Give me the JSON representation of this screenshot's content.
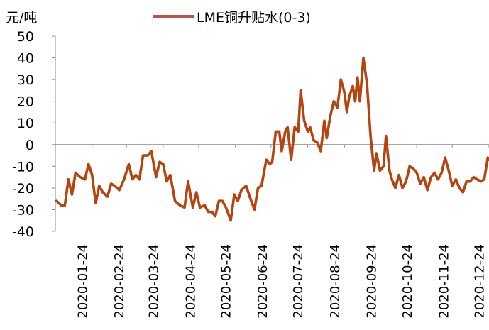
{
  "chart_data": {
    "type": "line",
    "title": "",
    "ylabel": "元/吨",
    "xlabel": "",
    "ylim": [
      -40,
      50
    ],
    "yticks": [
      50,
      40,
      30,
      20,
      10,
      0,
      -10,
      -20,
      -30,
      -40
    ],
    "xticks": [
      "2020-01-24",
      "2020-02-24",
      "2020-03-24",
      "2020-04-24",
      "2020-05-24",
      "2020-06-24",
      "2020-07-24",
      "2020-08-24",
      "2020-09-24",
      "2020-10-24",
      "2020-11-24",
      "2020-12-24"
    ],
    "grid": false,
    "legend_position": "top",
    "series": [
      {
        "name": "LME铜升贴水(0-3)",
        "color": "#b5440e",
        "points": [
          [
            "2020-01-02",
            -26
          ],
          [
            "2020-01-06",
            -28
          ],
          [
            "2020-01-09",
            -28
          ],
          [
            "2020-01-12",
            -16
          ],
          [
            "2020-01-15",
            -23
          ],
          [
            "2020-01-18",
            -13
          ],
          [
            "2020-01-22",
            -15
          ],
          [
            "2020-01-26",
            -16
          ],
          [
            "2020-01-29",
            -9
          ],
          [
            "2020-02-01",
            -14
          ],
          [
            "2020-02-04",
            -27
          ],
          [
            "2020-02-07",
            -19
          ],
          [
            "2020-02-10",
            -22
          ],
          [
            "2020-02-14",
            -24
          ],
          [
            "2020-02-17",
            -18
          ],
          [
            "2020-02-20",
            -19
          ],
          [
            "2020-02-24",
            -21
          ],
          [
            "2020-02-28",
            -16
          ],
          [
            "2020-03-03",
            -9
          ],
          [
            "2020-03-06",
            -16
          ],
          [
            "2020-03-09",
            -14
          ],
          [
            "2020-03-12",
            -16
          ],
          [
            "2020-03-15",
            -5
          ],
          [
            "2020-03-19",
            -5
          ],
          [
            "2020-03-22",
            -3
          ],
          [
            "2020-03-26",
            -15
          ],
          [
            "2020-03-29",
            -8
          ],
          [
            "2020-04-01",
            -9
          ],
          [
            "2020-04-04",
            -17
          ],
          [
            "2020-04-07",
            -14
          ],
          [
            "2020-04-11",
            -26
          ],
          [
            "2020-04-15",
            -28
          ],
          [
            "2020-04-19",
            -29
          ],
          [
            "2020-04-22",
            -17
          ],
          [
            "2020-04-26",
            -29
          ],
          [
            "2020-04-29",
            -22
          ],
          [
            "2020-05-02",
            -29
          ],
          [
            "2020-05-06",
            -28
          ],
          [
            "2020-05-09",
            -31
          ],
          [
            "2020-05-12",
            -31
          ],
          [
            "2020-05-15",
            -33
          ],
          [
            "2020-05-18",
            -26
          ],
          [
            "2020-05-21",
            -26
          ],
          [
            "2020-05-24",
            -29
          ],
          [
            "2020-05-28",
            -35
          ],
          [
            "2020-05-31",
            -23
          ],
          [
            "2020-06-03",
            -26
          ],
          [
            "2020-06-06",
            -21
          ],
          [
            "2020-06-10",
            -19
          ],
          [
            "2020-06-13",
            -24
          ],
          [
            "2020-06-17",
            -30
          ],
          [
            "2020-06-20",
            -20
          ],
          [
            "2020-06-23",
            -19
          ],
          [
            "2020-06-27",
            -7
          ],
          [
            "2020-06-30",
            -9
          ],
          [
            "2020-07-02",
            -8
          ],
          [
            "2020-07-05",
            6
          ],
          [
            "2020-07-08",
            6
          ],
          [
            "2020-07-10",
            -3
          ],
          [
            "2020-07-13",
            6
          ],
          [
            "2020-07-15",
            8
          ],
          [
            "2020-07-18",
            -7
          ],
          [
            "2020-07-21",
            8
          ],
          [
            "2020-07-24",
            6
          ],
          [
            "2020-07-26",
            25
          ],
          [
            "2020-07-29",
            11
          ],
          [
            "2020-08-01",
            6
          ],
          [
            "2020-08-03",
            8
          ],
          [
            "2020-08-06",
            2
          ],
          [
            "2020-08-09",
            1
          ],
          [
            "2020-08-12",
            -3
          ],
          [
            "2020-08-15",
            11
          ],
          [
            "2020-08-17",
            3
          ],
          [
            "2020-08-20",
            13
          ],
          [
            "2020-08-23",
            20
          ],
          [
            "2020-08-26",
            17
          ],
          [
            "2020-08-29",
            30
          ],
          [
            "2020-09-01",
            24
          ],
          [
            "2020-09-03",
            15
          ],
          [
            "2020-09-05",
            22
          ],
          [
            "2020-09-08",
            27
          ],
          [
            "2020-09-10",
            20
          ],
          [
            "2020-09-12",
            31
          ],
          [
            "2020-09-14",
            20
          ],
          [
            "2020-09-17",
            40
          ],
          [
            "2020-09-20",
            28
          ],
          [
            "2020-09-23",
            4
          ],
          [
            "2020-09-26",
            -12
          ],
          [
            "2020-09-28",
            -4
          ],
          [
            "2020-10-01",
            -12
          ],
          [
            "2020-10-04",
            -10
          ],
          [
            "2020-10-06",
            4
          ],
          [
            "2020-10-09",
            -12
          ],
          [
            "2020-10-11",
            -16
          ],
          [
            "2020-10-14",
            -20
          ],
          [
            "2020-10-17",
            -14
          ],
          [
            "2020-10-20",
            -20
          ],
          [
            "2020-10-23",
            -17
          ],
          [
            "2020-10-26",
            -10
          ],
          [
            "2020-10-29",
            -11
          ],
          [
            "2020-11-01",
            -13
          ],
          [
            "2020-11-04",
            -18
          ],
          [
            "2020-11-07",
            -15
          ],
          [
            "2020-11-10",
            -21
          ],
          [
            "2020-11-13",
            -15
          ],
          [
            "2020-11-16",
            -13
          ],
          [
            "2020-11-19",
            -16
          ],
          [
            "2020-11-22",
            -13
          ],
          [
            "2020-11-25",
            -6
          ],
          [
            "2020-11-28",
            -12
          ],
          [
            "2020-12-01",
            -19
          ],
          [
            "2020-12-04",
            -16
          ],
          [
            "2020-12-07",
            -20
          ],
          [
            "2020-12-10",
            -22
          ],
          [
            "2020-12-13",
            -17
          ],
          [
            "2020-12-16",
            -17
          ],
          [
            "2020-12-19",
            -15
          ],
          [
            "2020-12-22",
            -16
          ],
          [
            "2020-12-25",
            -17
          ],
          [
            "2020-12-28",
            -16
          ],
          [
            "2020-12-31",
            -6
          ],
          [
            "2021-01-01",
            -7
          ]
        ]
      }
    ]
  }
}
